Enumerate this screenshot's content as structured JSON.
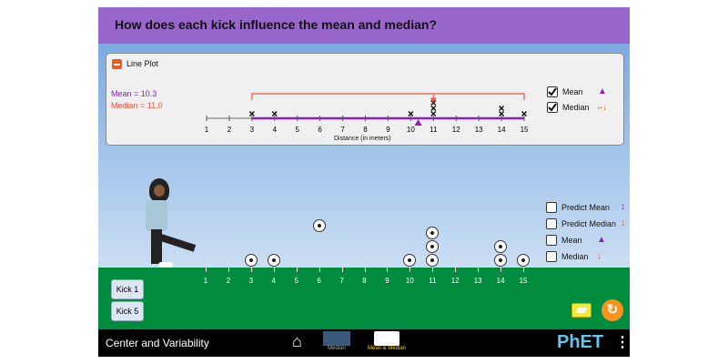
{
  "header": {
    "title": "How does each kick influence the mean and median?"
  },
  "plot": {
    "title": "Line Plot",
    "mean_label": "Mean = 10.3",
    "median_label": "Median = 11.0",
    "axis_label": "Distance (in meters)",
    "ticks": [
      "1",
      "2",
      "3",
      "4",
      "5",
      "6",
      "7",
      "8",
      "9",
      "10",
      "11",
      "12",
      "13",
      "14",
      "15"
    ],
    "data": [
      3,
      4,
      10,
      11,
      11,
      11,
      14,
      14,
      15
    ],
    "mean": 10.33,
    "median": 11,
    "legend": {
      "mean": "Mean",
      "median": "Median",
      "mean_checked": true,
      "median_checked": true
    }
  },
  "field": {
    "balls_landed": [
      3,
      4,
      10,
      11,
      11,
      11,
      14,
      14,
      15
    ],
    "ball_in_flight": 6,
    "ticks": [
      "1",
      "2",
      "3",
      "4",
      "5",
      "6",
      "7",
      "8",
      "9",
      "10",
      "11",
      "12",
      "13",
      "14",
      "15"
    ]
  },
  "options": [
    {
      "label": "Predict Mean",
      "checked": false
    },
    {
      "label": "Predict Median",
      "checked": false
    },
    {
      "label": "Mean",
      "checked": false
    },
    {
      "label": "Median",
      "checked": false
    }
  ],
  "buttons": {
    "kick1": "Kick 1",
    "kick5": "Kick 5"
  },
  "nav": {
    "title": "Center and Variability",
    "screens": [
      "Median",
      "Mean & Median"
    ],
    "logo": "PhET"
  },
  "colors": {
    "mean": "#8b1fc4",
    "median": "#f0533e",
    "header": "#9966cc",
    "ground": "#008c3e"
  }
}
